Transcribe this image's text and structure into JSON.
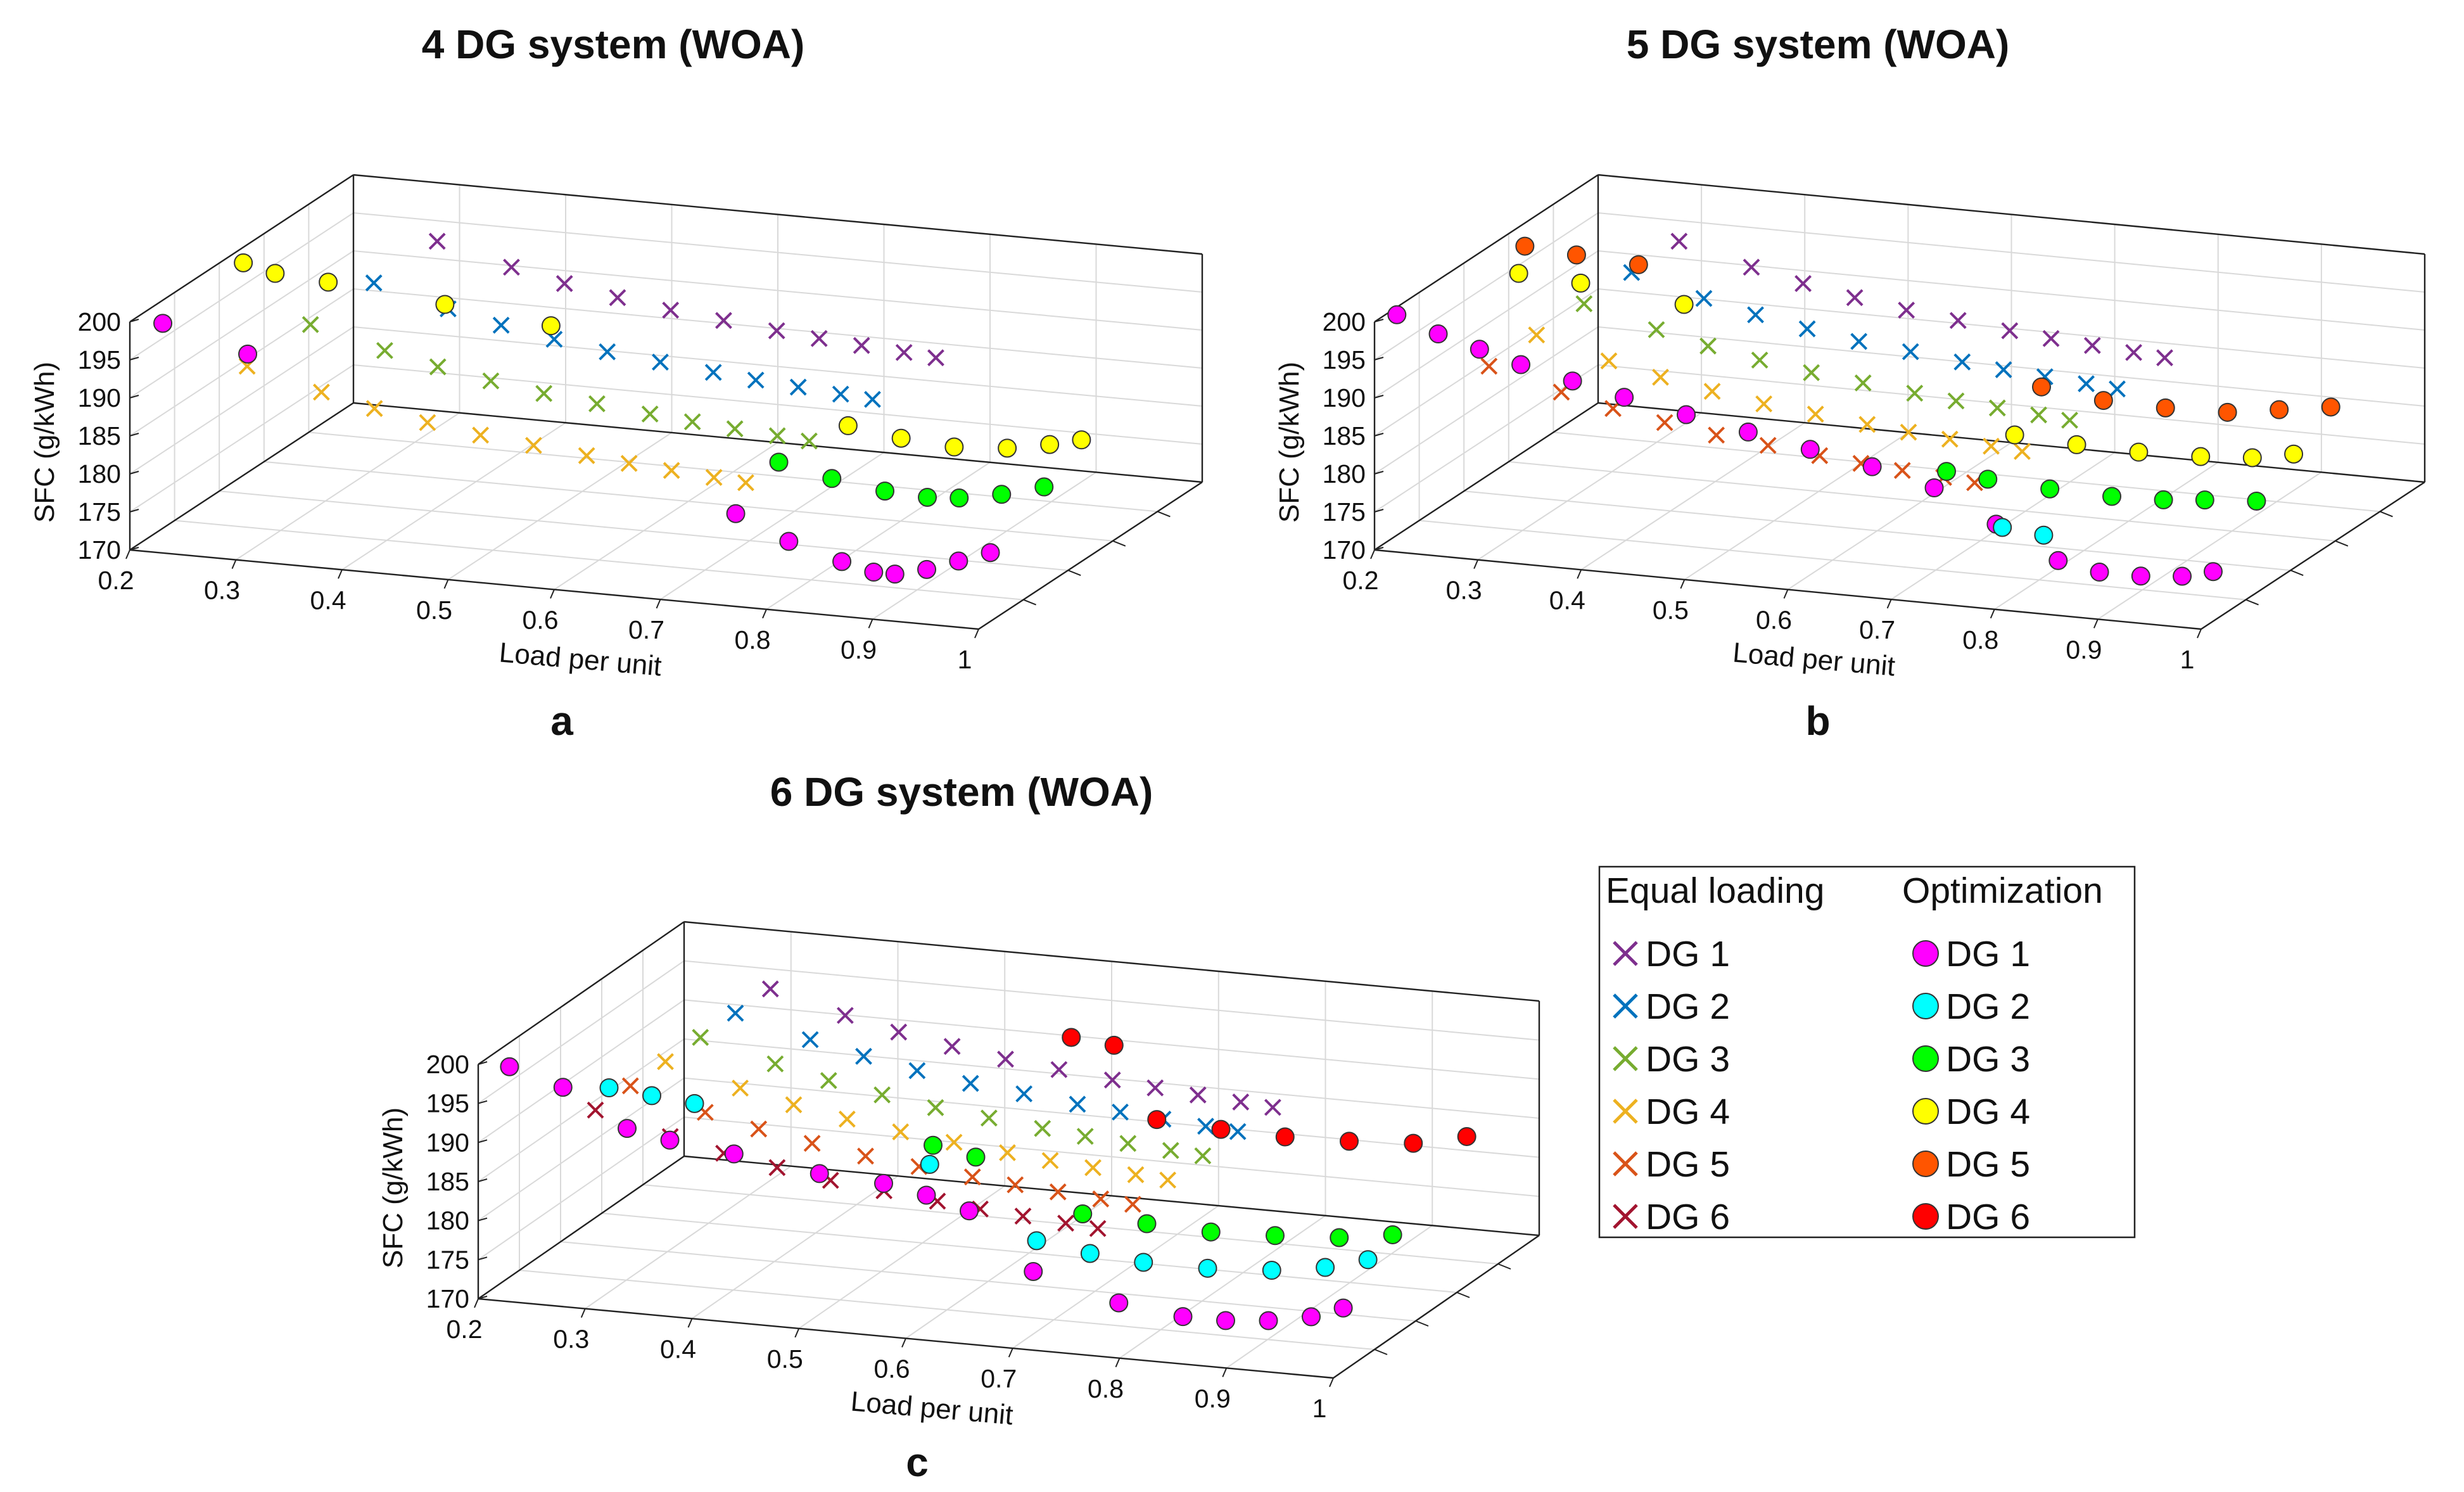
{
  "figure": {
    "legend": {
      "equal_header": "Equal loading",
      "opt_header": "Optimization"
    }
  },
  "chart_data": [
    {
      "id": "a",
      "panel_label": "a",
      "type": "scatter",
      "title": "4 DG system (WOA)",
      "xlabel": "Load per unit",
      "ylabel": "SFC (g/kWh)",
      "xlim": [
        0.2,
        1.0
      ],
      "ylim": [
        170,
        200
      ],
      "xticks": [
        "0.2",
        "0.3",
        "0.4",
        "0.5",
        "0.6",
        "0.7",
        "0.8",
        "0.9",
        "1"
      ],
      "yticks": [
        "170",
        "175",
        "180",
        "185",
        "190",
        "195",
        "200"
      ],
      "grid": true,
      "note": "3D view; depth axis separates the DG units (no tick labels). Values read approximately from plot.",
      "series": [
        {
          "name": "DG 1",
          "kind": "equal",
          "x": [
            0.3,
            0.37,
            0.42,
            0.47,
            0.52,
            0.57,
            0.62,
            0.66,
            0.7,
            0.74,
            0.77
          ],
          "y": [
            194.5,
            192,
            190.5,
            189.3,
            188.3,
            187.6,
            186.9,
            186.4,
            186,
            185.6,
            185.3
          ]
        },
        {
          "name": "DG 2",
          "kind": "equal",
          "x": [
            0.3,
            0.37,
            0.42,
            0.47,
            0.52,
            0.57,
            0.62,
            0.66,
            0.7,
            0.74,
            0.77
          ],
          "y": [
            194.5,
            192,
            190.5,
            189.3,
            188.3,
            187.6,
            186.9,
            186.4,
            186,
            185.6,
            185.3
          ]
        },
        {
          "name": "DG 3",
          "kind": "equal",
          "x": [
            0.3,
            0.37,
            0.42,
            0.47,
            0.52,
            0.57,
            0.62,
            0.66,
            0.7,
            0.74,
            0.77
          ],
          "y": [
            194.5,
            192,
            190.5,
            189.3,
            188.3,
            187.6,
            186.9,
            186.4,
            186,
            185.6,
            185.3
          ]
        },
        {
          "name": "DG 4",
          "kind": "equal",
          "x": [
            0.3,
            0.37,
            0.42,
            0.47,
            0.52,
            0.57,
            0.62,
            0.66,
            0.7,
            0.74,
            0.77
          ],
          "y": [
            194.5,
            192,
            190.5,
            189.3,
            188.3,
            187.6,
            186.9,
            186.4,
            186,
            185.6,
            185.3
          ]
        },
        {
          "name": "DG 1",
          "kind": "opt",
          "x": [
            0.21,
            0.29,
            0.75,
            0.8,
            0.85,
            0.88,
            0.9,
            0.93,
            0.96,
            0.99
          ],
          "y": [
            198,
            195,
            180,
            177,
            175,
            174,
            174,
            175,
            176.5,
            178
          ]
        },
        {
          "name": "DG 3",
          "kind": "opt",
          "x": [
            0.74,
            0.79,
            0.84,
            0.88,
            0.91,
            0.95,
            0.99
          ],
          "y": [
            182,
            180.5,
            179.5,
            179.2,
            179.5,
            180.5,
            182
          ]
        },
        {
          "name": "DG 4",
          "kind": "opt",
          "x": [
            0.21,
            0.24,
            0.29,
            0.4,
            0.5,
            0.78,
            0.83,
            0.88,
            0.93,
            0.97,
            1.0
          ],
          "y": [
            199,
            198,
            197.5,
            196,
            194.5,
            185,
            184,
            183.5,
            184,
            185,
            186
          ]
        }
      ]
    },
    {
      "id": "b",
      "panel_label": "b",
      "type": "scatter",
      "title": "5 DG system (WOA)",
      "xlabel": "Load per unit",
      "ylabel": "SFC (g/kWh)",
      "xlim": [
        0.2,
        1.0
      ],
      "ylim": [
        170,
        200
      ],
      "xticks": [
        "0.2",
        "0.3",
        "0.4",
        "0.5",
        "0.6",
        "0.7",
        "0.8",
        "0.9",
        "1"
      ],
      "yticks": [
        "170",
        "175",
        "180",
        "185",
        "190",
        "195",
        "200"
      ],
      "grid": true,
      "note": "3D view; depth axis separates the DG units (no tick labels). Values read approximately from plot.",
      "series": [
        {
          "name": "DG 1",
          "kind": "equal",
          "x": [
            0.3,
            0.37,
            0.42,
            0.47,
            0.52,
            0.57,
            0.62,
            0.66,
            0.7,
            0.74,
            0.77
          ],
          "y": [
            194.5,
            192,
            190.5,
            189.3,
            188.3,
            187.6,
            186.9,
            186.4,
            186,
            185.6,
            185.3
          ]
        },
        {
          "name": "DG 2",
          "kind": "equal",
          "x": [
            0.3,
            0.37,
            0.42,
            0.47,
            0.52,
            0.57,
            0.62,
            0.66,
            0.7,
            0.74,
            0.77
          ],
          "y": [
            194.5,
            192,
            190.5,
            189.3,
            188.3,
            187.6,
            186.9,
            186.4,
            186,
            185.6,
            185.3
          ]
        },
        {
          "name": "DG 3",
          "kind": "equal",
          "x": [
            0.3,
            0.37,
            0.42,
            0.47,
            0.52,
            0.57,
            0.62,
            0.66,
            0.7,
            0.74,
            0.77
          ],
          "y": [
            194.5,
            192,
            190.5,
            189.3,
            188.3,
            187.6,
            186.9,
            186.4,
            186,
            185.6,
            185.3
          ]
        },
        {
          "name": "DG 4",
          "kind": "equal",
          "x": [
            0.3,
            0.37,
            0.42,
            0.47,
            0.52,
            0.57,
            0.62,
            0.66,
            0.7,
            0.74,
            0.77
          ],
          "y": [
            194.5,
            192,
            190.5,
            189.3,
            188.3,
            187.6,
            186.9,
            186.4,
            186,
            185.6,
            185.3
          ]
        },
        {
          "name": "DG 5",
          "kind": "equal",
          "x": [
            0.3,
            0.37,
            0.42,
            0.47,
            0.52,
            0.57,
            0.62,
            0.66,
            0.7,
            0.74,
            0.77
          ],
          "y": [
            194.5,
            192,
            190.5,
            189.3,
            188.3,
            187.6,
            186.9,
            186.4,
            186,
            185.6,
            185.3
          ]
        },
        {
          "name": "DG 1",
          "kind": "opt",
          "x": [
            0.2,
            0.24,
            0.28,
            0.32,
            0.37,
            0.42,
            0.48,
            0.54,
            0.6,
            0.66,
            0.72,
            0.78,
            0.84,
            0.88,
            0.92,
            0.96,
            0.99
          ],
          "y": [
            199,
            197,
            195.5,
            194,
            192.5,
            191,
            189.5,
            188,
            186.5,
            185,
            183,
            179,
            175,
            174,
            174,
            174.5,
            175.5
          ]
        },
        {
          "name": "DG 2",
          "kind": "opt",
          "x": [
            0.76,
            0.8
          ],
          "y": [
            176,
            175.5
          ]
        },
        {
          "name": "DG 3",
          "kind": "opt",
          "x": [
            0.68,
            0.72,
            0.78,
            0.84,
            0.89,
            0.93,
            0.98
          ],
          "y": [
            180,
            179.5,
            179,
            178.8,
            179,
            179.5,
            180
          ]
        },
        {
          "name": "DG 4",
          "kind": "opt",
          "x": [
            0.24,
            0.3,
            0.4,
            0.72,
            0.78,
            0.84,
            0.9,
            0.95,
            0.99
          ],
          "y": [
            198,
            197.5,
            196,
            183,
            182.5,
            182.3,
            182.5,
            183,
            184
          ]
        },
        {
          "name": "DG 5",
          "kind": "opt",
          "x": [
            0.22,
            0.27,
            0.33,
            0.72,
            0.78,
            0.84,
            0.9,
            0.95,
            1.0
          ],
          "y": [
            199,
            198.5,
            198,
            187,
            186,
            185.8,
            186,
            187,
            188
          ]
        }
      ]
    },
    {
      "id": "c",
      "panel_label": "c",
      "type": "scatter",
      "title": "6 DG system (WOA)",
      "xlabel": "Load per unit",
      "ylabel": "SFC (g/kWh)",
      "xlim": [
        0.2,
        1.0
      ],
      "ylim": [
        170,
        200
      ],
      "xticks": [
        "0.2",
        "0.3",
        "0.4",
        "0.5",
        "0.6",
        "0.7",
        "0.8",
        "0.9",
        "1"
      ],
      "yticks": [
        "170",
        "175",
        "180",
        "185",
        "190",
        "195",
        "200"
      ],
      "grid": true,
      "note": "3D view; depth axis separates the DG units (no tick labels). Values read approximately from plot.",
      "series": [
        {
          "name": "DG 1",
          "kind": "equal",
          "x": [
            0.3,
            0.37,
            0.42,
            0.47,
            0.52,
            0.57,
            0.62,
            0.66,
            0.7,
            0.74,
            0.77
          ],
          "y": [
            194.5,
            192,
            190.5,
            189.3,
            188.3,
            187.6,
            186.9,
            186.4,
            186,
            185.6,
            185.3
          ]
        },
        {
          "name": "DG 2",
          "kind": "equal",
          "x": [
            0.3,
            0.37,
            0.42,
            0.47,
            0.52,
            0.57,
            0.62,
            0.66,
            0.7,
            0.74,
            0.77
          ],
          "y": [
            194.5,
            192,
            190.5,
            189.3,
            188.3,
            187.6,
            186.9,
            186.4,
            186,
            185.6,
            185.3
          ]
        },
        {
          "name": "DG 3",
          "kind": "equal",
          "x": [
            0.3,
            0.37,
            0.42,
            0.47,
            0.52,
            0.57,
            0.62,
            0.66,
            0.7,
            0.74,
            0.77
          ],
          "y": [
            194.5,
            192,
            190.5,
            189.3,
            188.3,
            187.6,
            186.9,
            186.4,
            186,
            185.6,
            185.3
          ]
        },
        {
          "name": "DG 4",
          "kind": "equal",
          "x": [
            0.3,
            0.37,
            0.42,
            0.47,
            0.52,
            0.57,
            0.62,
            0.66,
            0.7,
            0.74,
            0.77
          ],
          "y": [
            194.5,
            192,
            190.5,
            189.3,
            188.3,
            187.6,
            186.9,
            186.4,
            186,
            185.6,
            185.3
          ]
        },
        {
          "name": "DG 5",
          "kind": "equal",
          "x": [
            0.3,
            0.37,
            0.42,
            0.47,
            0.52,
            0.57,
            0.62,
            0.66,
            0.7,
            0.74,
            0.77
          ],
          "y": [
            194.5,
            192,
            190.5,
            189.3,
            188.3,
            187.6,
            186.9,
            186.4,
            186,
            185.6,
            185.3
          ]
        },
        {
          "name": "DG 6",
          "kind": "equal",
          "x": [
            0.3,
            0.37,
            0.42,
            0.47,
            0.52,
            0.57,
            0.62,
            0.66,
            0.7,
            0.74,
            0.77
          ],
          "y": [
            194.5,
            192,
            190.5,
            189.3,
            188.3,
            187.6,
            186.9,
            186.4,
            186,
            185.6,
            185.3
          ]
        },
        {
          "name": "DG 1",
          "kind": "opt",
          "x": [
            0.21,
            0.26,
            0.32,
            0.36,
            0.42,
            0.5,
            0.56,
            0.6,
            0.64,
            0.7,
            0.78,
            0.84,
            0.88,
            0.92,
            0.96,
            0.99
          ],
          "y": [
            198,
            196,
            191.5,
            190.5,
            189.5,
            188,
            187.5,
            186.5,
            185,
            178,
            175,
            174,
            174,
            174.5,
            175.5,
            177
          ]
        },
        {
          "name": "DG 2",
          "kind": "opt",
          "x": [
            0.28,
            0.32,
            0.36,
            0.58,
            0.68,
            0.73,
            0.78,
            0.84,
            0.9,
            0.95,
            0.99
          ],
          "y": [
            194,
            193.5,
            193,
            188,
            179.5,
            178.5,
            178,
            178,
            178.5,
            179.5,
            181
          ]
        },
        {
          "name": "DG 3",
          "kind": "opt",
          "x": [
            0.56,
            0.6,
            0.7,
            0.76,
            0.82,
            0.88,
            0.94,
            0.99
          ],
          "y": [
            188,
            187,
            181,
            180.5,
            180.2,
            180.5,
            181,
            182
          ]
        },
        {
          "name": "DG 6",
          "kind": "opt",
          "x": [
            0.62,
            0.66,
            0.7,
            0.76,
            0.82,
            0.88,
            0.94,
            0.99
          ],
          "y": [
            196,
            195.5,
            186.5,
            186,
            185.8,
            186,
            186.5,
            188
          ]
        }
      ]
    }
  ],
  "legend": {
    "equal_title": "Equal loading",
    "opt_title": "Optimization",
    "equal": [
      {
        "label": "DG 1",
        "color": "#7E2F8E"
      },
      {
        "label": "DG 2",
        "color": "#0072BD"
      },
      {
        "label": "DG 3",
        "color": "#77AC30"
      },
      {
        "label": "DG 4",
        "color": "#EDB120"
      },
      {
        "label": "DG 5",
        "color": "#D95319"
      },
      {
        "label": "DG 6",
        "color": "#A2142F"
      }
    ],
    "opt": [
      {
        "label": "DG 1",
        "color": "#FF00FF"
      },
      {
        "label": "DG 2",
        "color": "#00FFFF"
      },
      {
        "label": "DG 3",
        "color": "#00FF00"
      },
      {
        "label": "DG 4",
        "color": "#FFFF00"
      },
      {
        "label": "DG 5",
        "color": "#FF5500"
      },
      {
        "label": "DG 6",
        "color": "#FF0000"
      }
    ]
  }
}
